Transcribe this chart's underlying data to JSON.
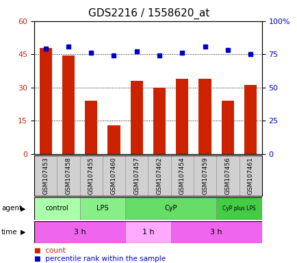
{
  "title": "GDS2216 / 1558620_at",
  "samples": [
    "GSM107453",
    "GSM107458",
    "GSM107455",
    "GSM107460",
    "GSM107457",
    "GSM107462",
    "GSM107454",
    "GSM107459",
    "GSM107456",
    "GSM107461"
  ],
  "counts": [
    48,
    44.5,
    24,
    13,
    33,
    30,
    34,
    34,
    24,
    31
  ],
  "percentile_ranks": [
    79,
    81,
    76,
    74,
    77,
    74,
    76,
    81,
    78,
    75
  ],
  "ylim_left": [
    0,
    60
  ],
  "ylim_right": [
    0,
    100
  ],
  "yticks_left": [
    0,
    15,
    30,
    45,
    60
  ],
  "yticks_right": [
    0,
    25,
    50,
    75,
    100
  ],
  "yticklabels_right": [
    "0",
    "25",
    "50",
    "75",
    "100%"
  ],
  "bar_color": "#cc2200",
  "dot_color": "#0000cc",
  "agent_groups": [
    {
      "label": "control",
      "start": 0,
      "end": 2,
      "color": "#aaffaa"
    },
    {
      "label": "LPS",
      "start": 2,
      "end": 4,
      "color": "#88ee88"
    },
    {
      "label": "CyP",
      "start": 4,
      "end": 8,
      "color": "#66dd66"
    },
    {
      "label": "CyP plus LPS",
      "start": 8,
      "end": 10,
      "color": "#44cc44"
    }
  ],
  "time_groups": [
    {
      "label": "3 h",
      "start": 0,
      "end": 4,
      "color": "#ee66ee"
    },
    {
      "label": "1 h",
      "start": 4,
      "end": 6,
      "color": "#ffaaff"
    },
    {
      "label": "3 h",
      "start": 6,
      "end": 10,
      "color": "#ee66ee"
    }
  ],
  "legend_count_label": "count",
  "legend_pct_label": "percentile rank within the sample",
  "background_color": "#ffffff",
  "plot_bg_color": "#ffffff",
  "title_fontsize": 11,
  "xlabel_fontsize": 6.5,
  "tick_fontsize": 8,
  "row_label_fontsize": 8,
  "row_cell_color": "#d0d0d0"
}
